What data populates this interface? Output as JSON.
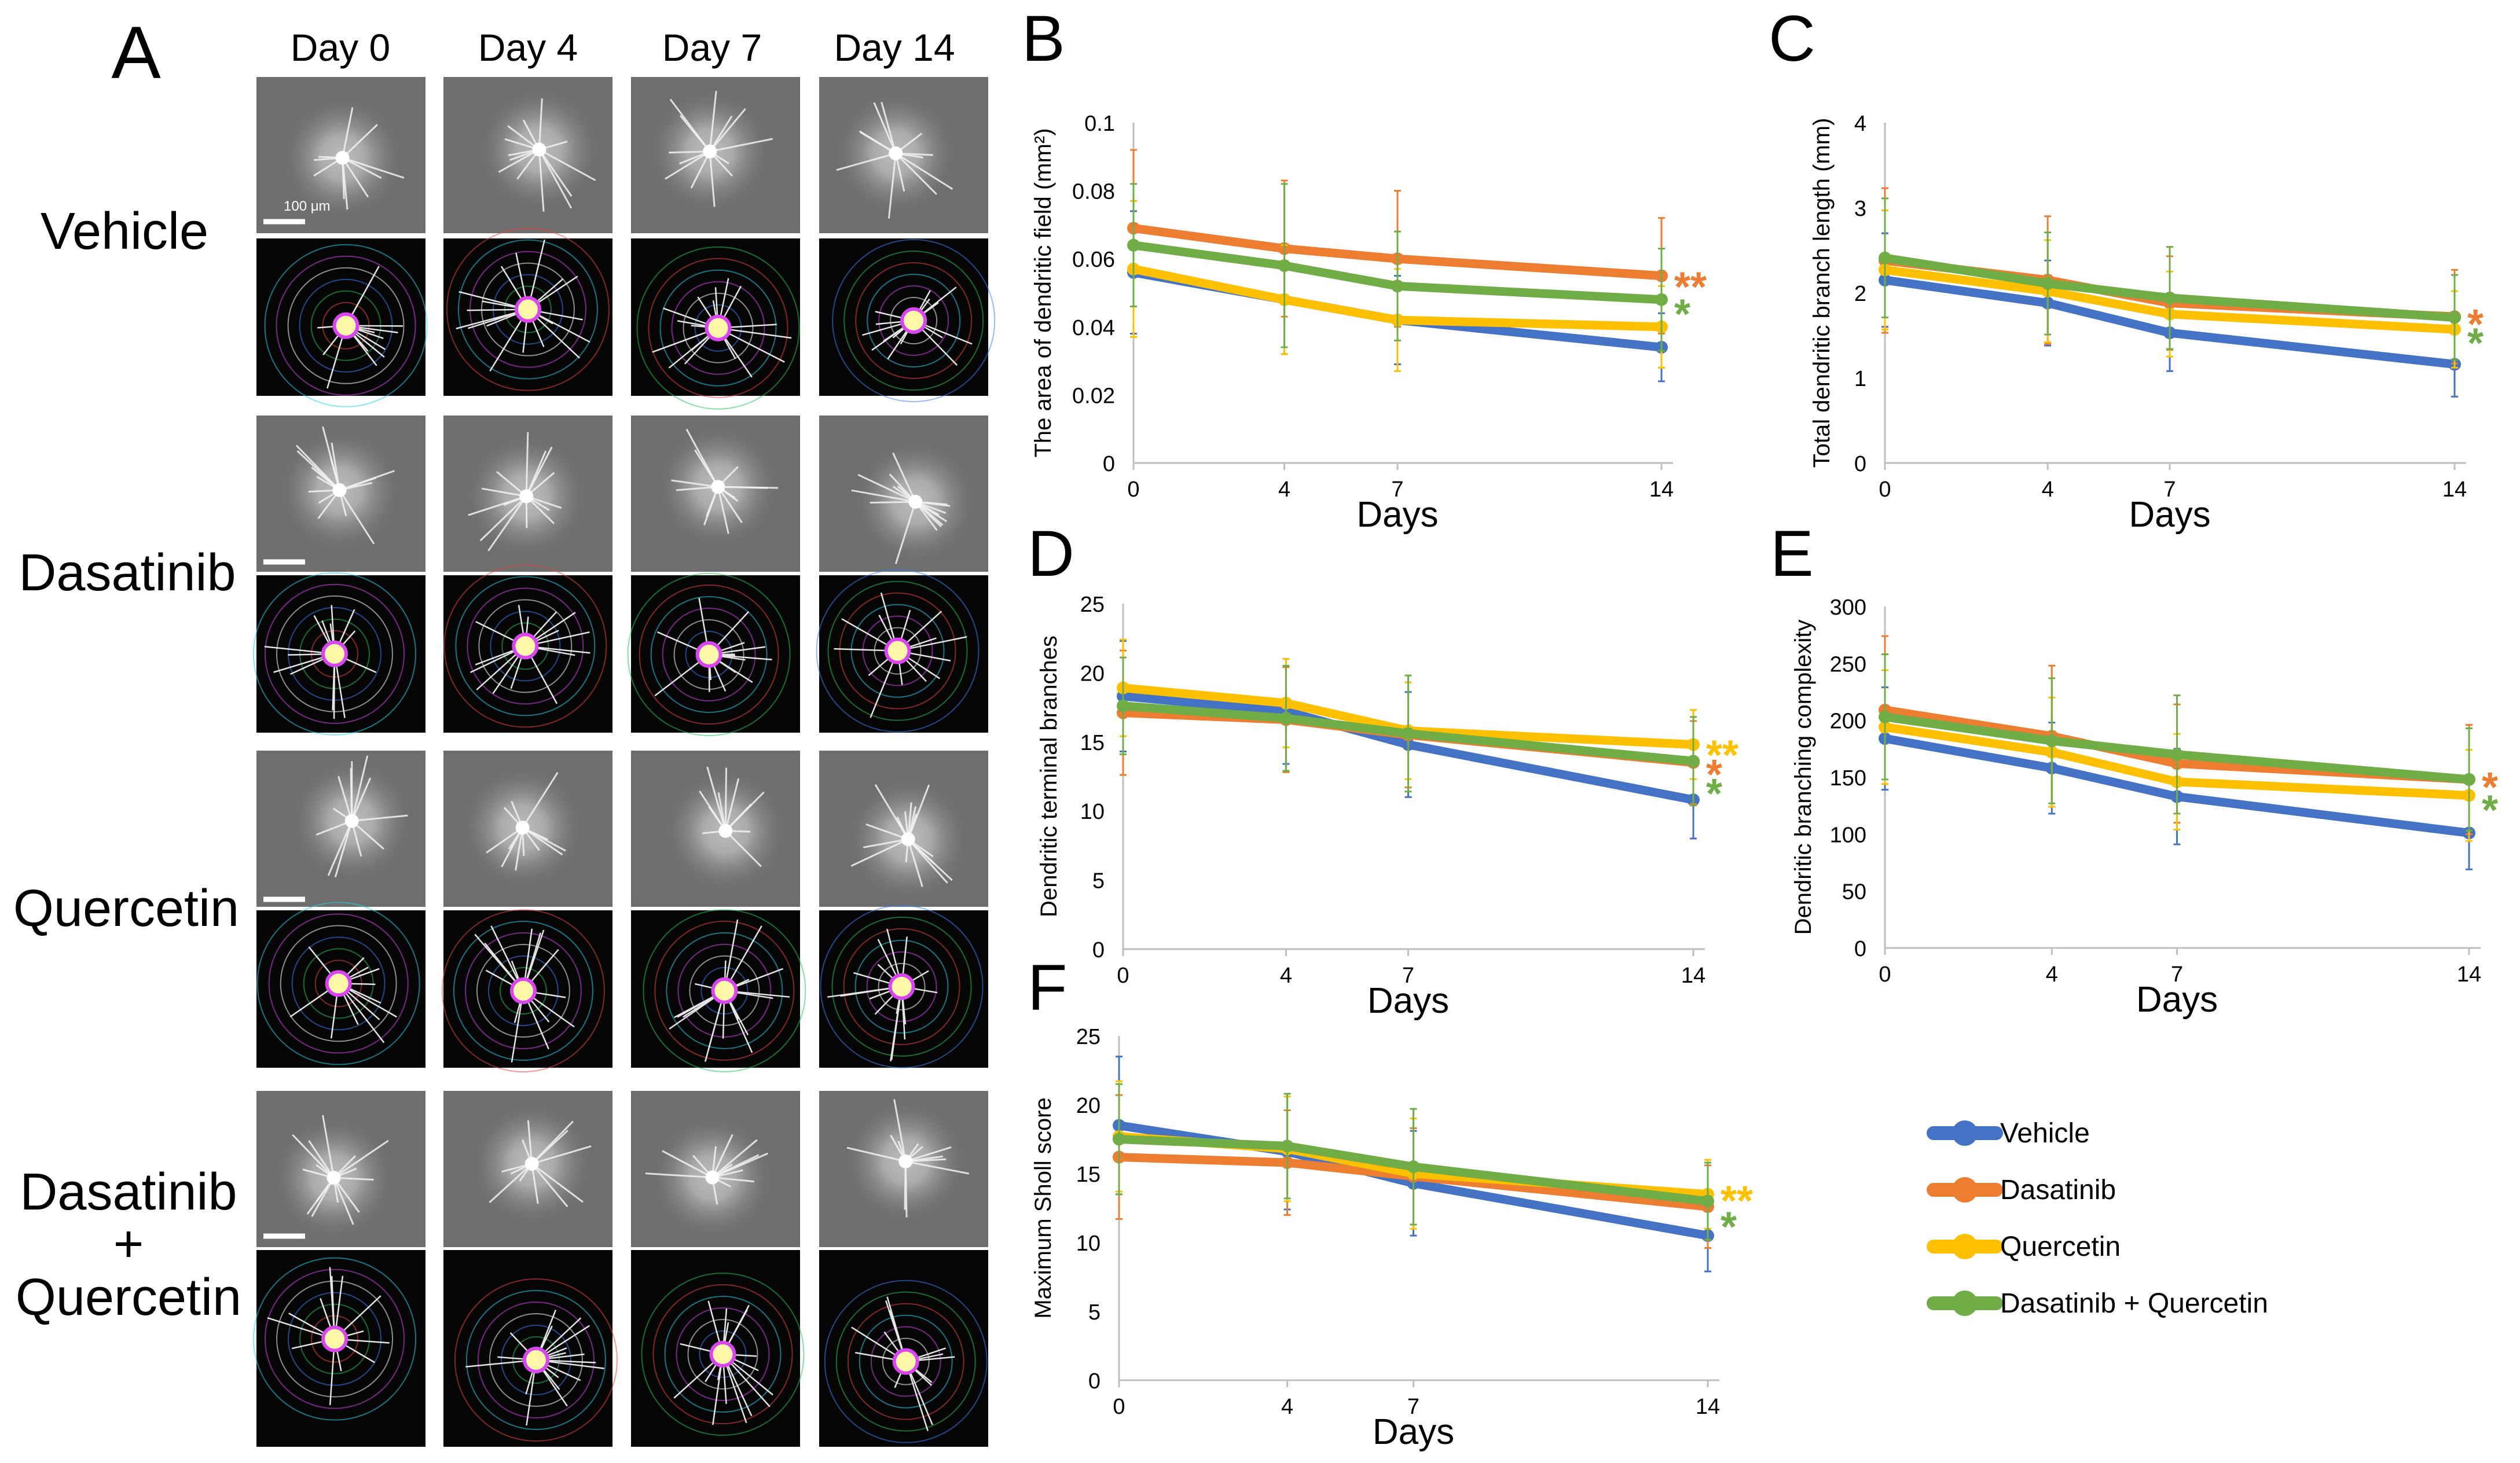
{
  "panel_a": {
    "letter": "A",
    "day_headers": [
      "Day 0",
      "Day 4",
      "Day 7",
      "Day 14"
    ],
    "rows": [
      {
        "label_lines": [
          "Vehicle"
        ]
      },
      {
        "label_lines": [
          "Dasatinib"
        ]
      },
      {
        "label_lines": [
          "Quercetin"
        ]
      },
      {
        "label_lines": [
          "Dasatinib",
          "+",
          "Quercetin"
        ]
      }
    ],
    "scale_bar_label": "100 μm"
  },
  "legend": {
    "items": [
      {
        "name": "Vehicle",
        "color": "#4472C4"
      },
      {
        "name": "Dasatinib",
        "color": "#ED7D31"
      },
      {
        "name": "Quercetin",
        "color": "#FFC000"
      },
      {
        "name": "Dasatinib + Quercetin",
        "color": "#70AD47"
      }
    ]
  },
  "chart_data": [
    {
      "panel": "B",
      "type": "line",
      "title": "",
      "xlabel": "Days",
      "ylabel": "The area of dendritic field (mm²)",
      "x": [
        0,
        4,
        7,
        14
      ],
      "xticks": [
        "0",
        "4",
        "7",
        "14"
      ],
      "xlim": [
        0,
        14
      ],
      "ylim": [
        0,
        0.1
      ],
      "yticks": [
        "0",
        "0.02",
        "0.04",
        "0.06",
        "0.08",
        "0.1"
      ],
      "series": [
        {
          "name": "Vehicle",
          "color": "#4472C4",
          "values": [
            0.056,
            0.048,
            0.042,
            0.034
          ],
          "err": [
            0.018,
            0.016,
            0.013,
            0.01
          ]
        },
        {
          "name": "Dasatinib",
          "color": "#ED7D31",
          "values": [
            0.069,
            0.063,
            0.06,
            0.055
          ],
          "err": [
            0.023,
            0.02,
            0.02,
            0.017
          ]
        },
        {
          "name": "Quercetin",
          "color": "#FFC000",
          "values": [
            0.057,
            0.048,
            0.042,
            0.04
          ],
          "err": [
            0.02,
            0.016,
            0.015,
            0.012
          ]
        },
        {
          "name": "Dasatinib + Quercetin",
          "color": "#70AD47",
          "values": [
            0.064,
            0.058,
            0.052,
            0.048
          ],
          "err": [
            0.018,
            0.024,
            0.016,
            0.015
          ]
        }
      ],
      "annotations": [
        {
          "text": "**",
          "color": "#ED7D31",
          "y": 0.054
        },
        {
          "text": "*",
          "color": "#70AD47",
          "y": 0.046
        }
      ]
    },
    {
      "panel": "C",
      "type": "line",
      "title": "",
      "xlabel": "Days",
      "ylabel": "Total dendritic branch length (mm)",
      "x": [
        0,
        4,
        7,
        14
      ],
      "xticks": [
        "0",
        "4",
        "7",
        "14"
      ],
      "xlim": [
        0,
        14
      ],
      "ylim": [
        0,
        4
      ],
      "yticks": [
        "0",
        "1",
        "2",
        "3",
        "4"
      ],
      "series": [
        {
          "name": "Vehicle",
          "color": "#4472C4",
          "values": [
            2.15,
            1.88,
            1.53,
            1.16
          ],
          "err": [
            0.55,
            0.5,
            0.45,
            0.38
          ]
        },
        {
          "name": "Dasatinib",
          "color": "#ED7D31",
          "values": [
            2.38,
            2.15,
            1.88,
            1.72
          ],
          "err": [
            0.85,
            0.75,
            0.55,
            0.55
          ]
        },
        {
          "name": "Quercetin",
          "color": "#FFC000",
          "values": [
            2.27,
            2.02,
            1.75,
            1.57
          ],
          "err": [
            0.7,
            0.6,
            0.5,
            0.45
          ]
        },
        {
          "name": "Dasatinib + Quercetin",
          "color": "#70AD47",
          "values": [
            2.41,
            2.11,
            1.94,
            1.71
          ],
          "err": [
            0.7,
            0.6,
            0.6,
            0.5
          ]
        }
      ],
      "annotations": [
        {
          "text": "*",
          "color": "#ED7D31",
          "y": 1.72
        },
        {
          "text": "*",
          "color": "#70AD47",
          "y": 1.5
        }
      ]
    },
    {
      "panel": "D",
      "type": "line",
      "title": "",
      "xlabel": "Days",
      "ylabel": "Dendritic terminal branches",
      "x": [
        0,
        4,
        7,
        14
      ],
      "xticks": [
        "0",
        "4",
        "7",
        "14"
      ],
      "xlim": [
        0,
        14
      ],
      "ylim": [
        0,
        25
      ],
      "yticks": [
        "0",
        "5",
        "10",
        "15",
        "20",
        "25"
      ],
      "series": [
        {
          "name": "Vehicle",
          "color": "#4472C4",
          "values": [
            18.3,
            17.2,
            14.8,
            10.8
          ],
          "err": [
            4.0,
            3.8,
            3.8,
            2.8
          ]
        },
        {
          "name": "Dasatinib",
          "color": "#ED7D31",
          "values": [
            17.1,
            16.6,
            15.5,
            13.5
          ],
          "err": [
            4.5,
            3.8,
            3.8,
            3.0
          ]
        },
        {
          "name": "Quercetin",
          "color": "#FFC000",
          "values": [
            18.9,
            17.8,
            15.8,
            14.8
          ],
          "err": [
            3.5,
            3.2,
            3.5,
            2.5
          ]
        },
        {
          "name": "Dasatinib + Quercetin",
          "color": "#70AD47",
          "values": [
            17.6,
            16.7,
            15.6,
            13.6
          ],
          "err": [
            3.5,
            3.8,
            4.2,
            3.2
          ]
        }
      ],
      "annotations": [
        {
          "text": "**",
          "color": "#FFC000",
          "y": 14.6
        },
        {
          "text": "*",
          "color": "#ED7D31",
          "y": 13.2
        },
        {
          "text": "*",
          "color": "#70AD47",
          "y": 11.8
        }
      ]
    },
    {
      "panel": "E",
      "type": "line",
      "title": "",
      "xlabel": "Days",
      "ylabel": "Dendritic branching complexity",
      "x": [
        0,
        4,
        7,
        14
      ],
      "xticks": [
        "0",
        "4",
        "7",
        "14"
      ],
      "xlim": [
        0,
        14
      ],
      "ylim": [
        0,
        300
      ],
      "yticks": [
        "0",
        "50",
        "100",
        "150",
        "200",
        "250",
        "300"
      ],
      "series": [
        {
          "name": "Vehicle",
          "color": "#4472C4",
          "values": [
            184,
            158,
            133,
            101
          ],
          "err": [
            45,
            40,
            42,
            32
          ]
        },
        {
          "name": "Dasatinib",
          "color": "#ED7D31",
          "values": [
            209,
            186,
            162,
            148
          ],
          "err": [
            65,
            62,
            52,
            48
          ]
        },
        {
          "name": "Quercetin",
          "color": "#FFC000",
          "values": [
            194,
            172,
            146,
            134
          ],
          "err": [
            50,
            48,
            42,
            40
          ]
        },
        {
          "name": "Dasatinib + Quercetin",
          "color": "#70AD47",
          "values": [
            203,
            182,
            170,
            148
          ],
          "err": [
            55,
            55,
            52,
            45
          ]
        }
      ],
      "annotations": [
        {
          "text": "*",
          "color": "#ED7D31",
          "y": 148
        },
        {
          "text": "*",
          "color": "#70AD47",
          "y": 128
        }
      ]
    },
    {
      "panel": "F",
      "type": "line",
      "title": "",
      "xlabel": "Days",
      "ylabel": "Maximum Sholl score",
      "x": [
        0,
        4,
        7,
        14
      ],
      "xticks": [
        "0",
        "4",
        "7",
        "14"
      ],
      "xlim": [
        0,
        14
      ],
      "ylim": [
        0,
        25
      ],
      "yticks": [
        "0",
        "5",
        "10",
        "15",
        "20",
        "25"
      ],
      "series": [
        {
          "name": "Vehicle",
          "color": "#4472C4",
          "values": [
            18.5,
            16.6,
            14.3,
            10.5
          ],
          "err": [
            5.0,
            4.2,
            3.8,
            2.6
          ]
        },
        {
          "name": "Dasatinib",
          "color": "#ED7D31",
          "values": [
            16.2,
            15.8,
            14.8,
            12.6
          ],
          "err": [
            4.5,
            3.8,
            3.5,
            3.0
          ]
        },
        {
          "name": "Quercetin",
          "color": "#FFC000",
          "values": [
            17.7,
            16.8,
            15.0,
            13.5
          ],
          "err": [
            4.0,
            3.8,
            4.0,
            2.5
          ]
        },
        {
          "name": "Dasatinib + Quercetin",
          "color": "#70AD47",
          "values": [
            17.5,
            17.0,
            15.5,
            13.0
          ],
          "err": [
            4.0,
            3.8,
            4.2,
            2.8
          ]
        }
      ],
      "annotations": [
        {
          "text": "**",
          "color": "#FFC000",
          "y": 13.6
        },
        {
          "text": "*",
          "color": "#70AD47",
          "y": 11.7
        }
      ]
    }
  ]
}
